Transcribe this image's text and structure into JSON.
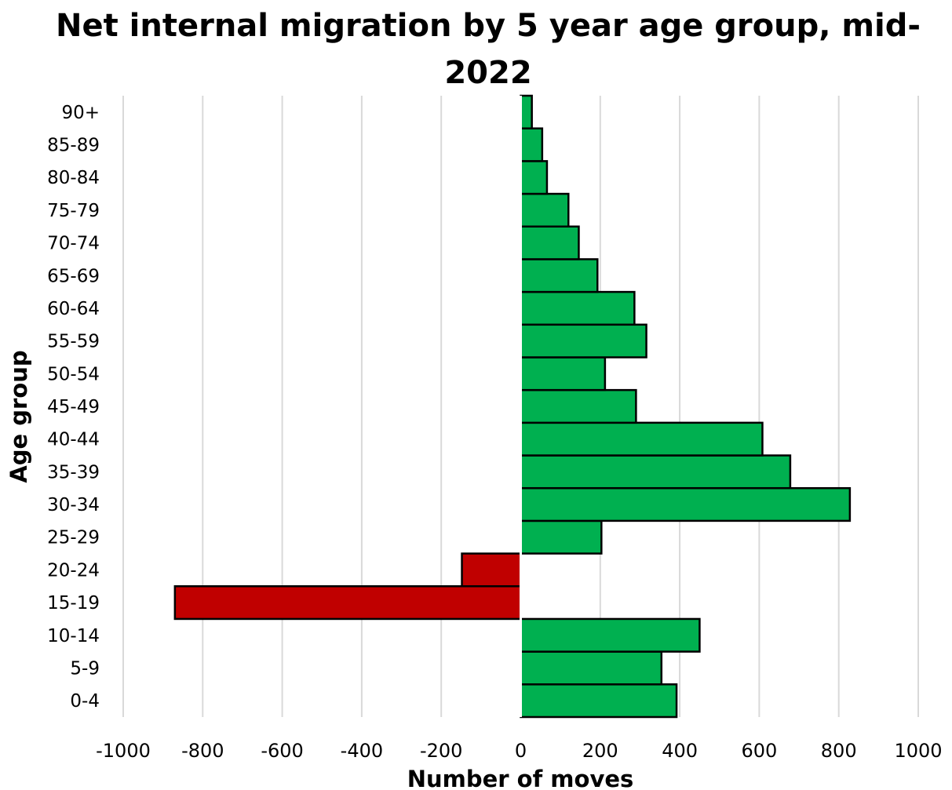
{
  "chart_data": {
    "type": "bar",
    "orientation": "horizontal",
    "title": "Net internal migration by 5 year age group, mid-2022",
    "title_lines": [
      "Net internal migration by 5 year age group, mid-",
      "2022"
    ],
    "xlabel": "Number of moves",
    "ylabel": "Age group",
    "xlim": [
      -1000,
      1000
    ],
    "xticks": [
      -1000,
      -800,
      -600,
      -400,
      -200,
      0,
      200,
      400,
      600,
      800,
      1000
    ],
    "xtick_labels": [
      "-1000",
      "-800",
      "-600",
      "-400",
      "-200",
      "0",
      "200",
      "400",
      "600",
      "800",
      "1000"
    ],
    "grid": "vertical",
    "legend": "none",
    "categories": [
      "0-4",
      "5-9",
      "10-14",
      "15-19",
      "20-24",
      "25-29",
      "30-34",
      "35-39",
      "40-44",
      "45-49",
      "50-54",
      "55-59",
      "60-64",
      "65-69",
      "70-74",
      "75-79",
      "80-84",
      "85-89",
      "90+"
    ],
    "values": [
      392,
      354,
      450,
      -870,
      -148,
      203,
      828,
      678,
      608,
      290,
      212,
      316,
      286,
      193,
      146,
      120,
      66,
      54,
      28
    ],
    "colors": {
      "positive": "#00b050",
      "negative": "#c00000",
      "bar_outline": "#000000",
      "grid": "#d9d9d9",
      "zero_line": "#ffffff"
    }
  }
}
